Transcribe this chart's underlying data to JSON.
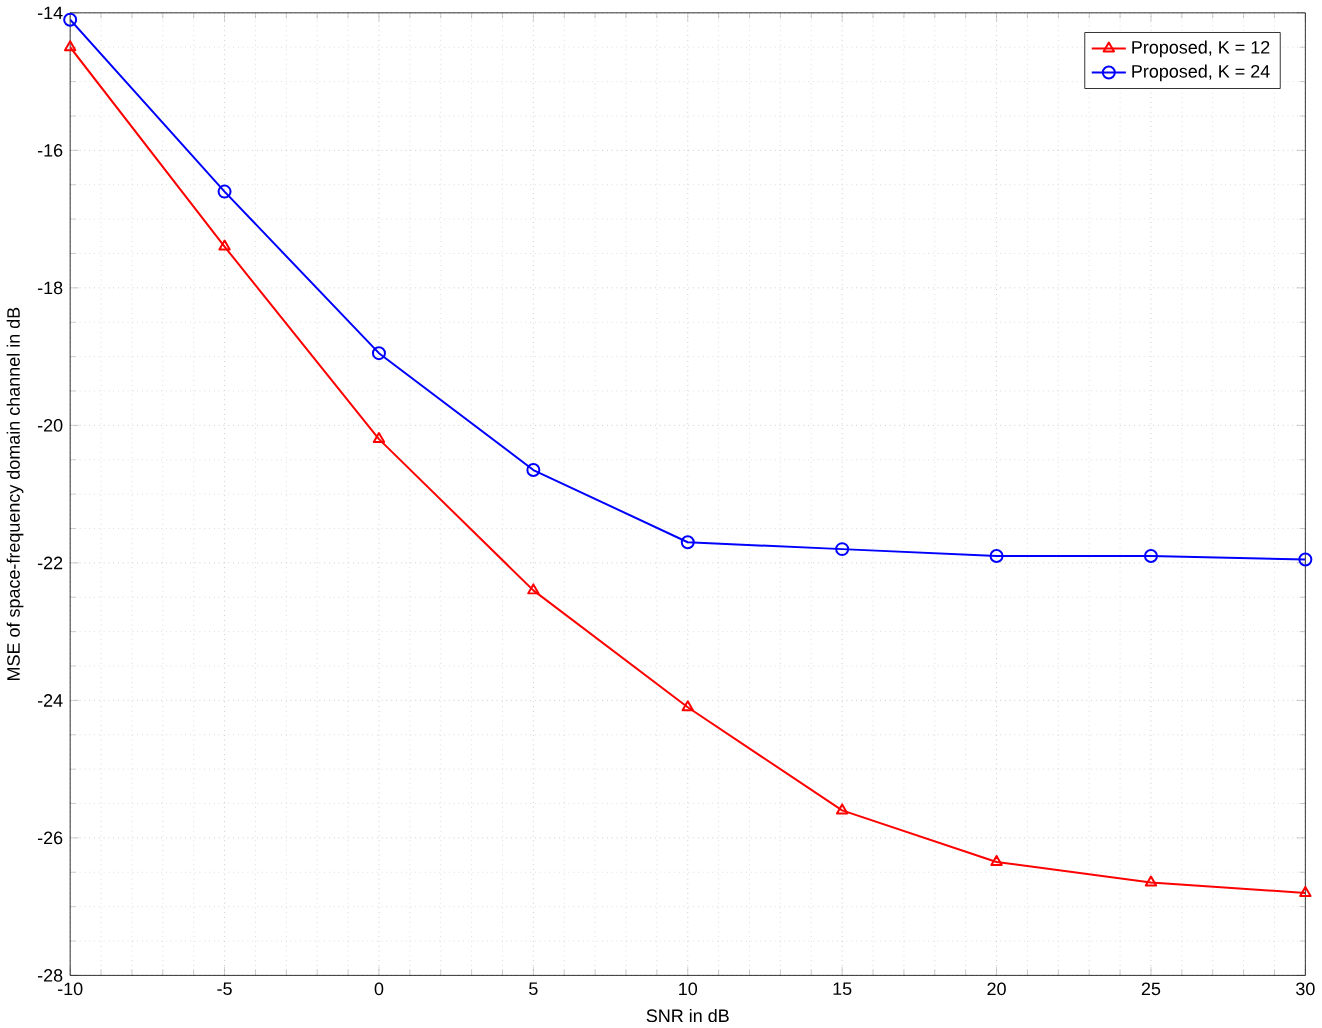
{
  "chart_data": {
    "type": "line",
    "xlabel": "SNR in dB",
    "ylabel": "MSE of space-frequency domain channel in dB",
    "x": [
      -10,
      -5,
      0,
      5,
      10,
      15,
      20,
      25,
      30
    ],
    "series": [
      {
        "name": "Proposed, K = 12",
        "color": "#ff0000",
        "marker": "triangle",
        "values": [
          -14.5,
          -17.4,
          -20.2,
          -22.4,
          -24.1,
          -25.6,
          -26.35,
          -26.65,
          -26.8
        ]
      },
      {
        "name": "Proposed, K = 24",
        "color": "#0000ff",
        "marker": "circle",
        "values": [
          -14.1,
          -16.6,
          -18.95,
          -20.65,
          -21.7,
          -21.8,
          -21.9,
          -21.9,
          -21.95
        ]
      }
    ],
    "xlim": [
      -10,
      30
    ],
    "xticks": [
      -10,
      -5,
      0,
      5,
      10,
      15,
      20,
      25,
      30
    ],
    "ylim": [
      -28,
      -14
    ],
    "yticks": [
      -28,
      -26,
      -24,
      -22,
      -20,
      -18,
      -16,
      -14
    ],
    "grid": true,
    "legend": "top right",
    "line_style": "solid"
  }
}
